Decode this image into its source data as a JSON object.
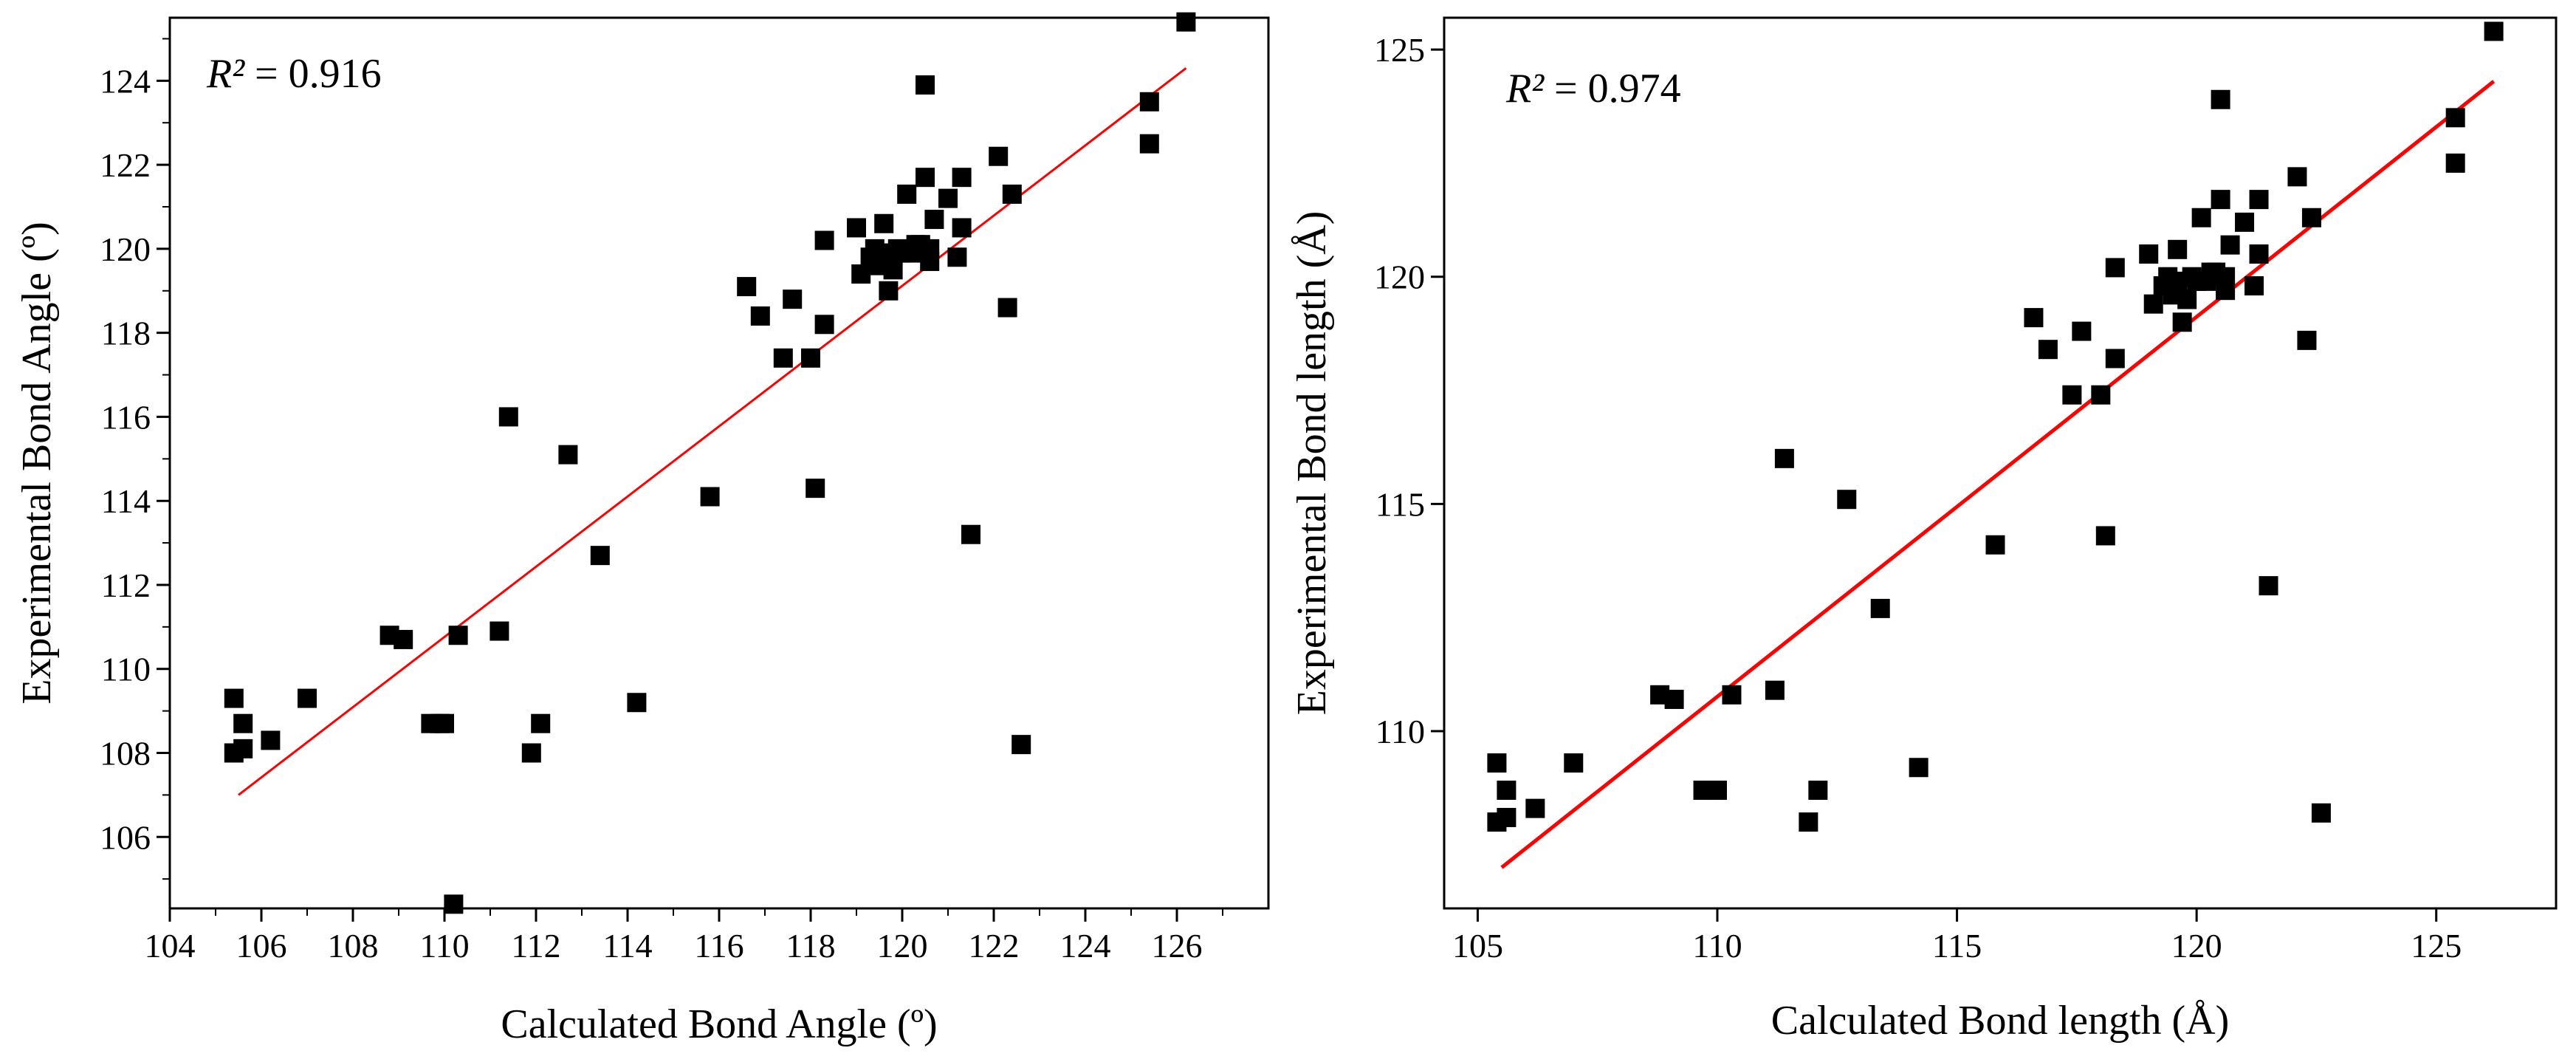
{
  "chart_data": [
    {
      "type": "scatter",
      "title": "",
      "xlabel": "Calculated Bond Angle (º)",
      "ylabel": "Experimental Bond Angle (º)",
      "xlim": [
        104,
        128
      ],
      "ylim": [
        104.3,
        125.5
      ],
      "xticks": [
        "104",
        "106",
        "108",
        "110",
        "112",
        "114",
        "116",
        "118",
        "120",
        "122",
        "124",
        "126"
      ],
      "yticks": [
        "106",
        "108",
        "110",
        "112",
        "114",
        "116",
        "118",
        "120",
        "122",
        "124"
      ],
      "r2_italic": "R²",
      "r2_value": " = 0.916",
      "fit_line": {
        "x": [
          105.5,
          126.2
        ],
        "y": [
          107.0,
          124.3
        ],
        "color": "#ff0000"
      },
      "marker_color": "#000000",
      "points": [
        [
          105.4,
          109.3
        ],
        [
          105.4,
          108.0
        ],
        [
          105.6,
          108.7
        ],
        [
          105.6,
          108.1
        ],
        [
          106.2,
          108.3
        ],
        [
          107.0,
          109.3
        ],
        [
          108.8,
          110.8
        ],
        [
          109.1,
          110.7
        ],
        [
          109.7,
          108.7
        ],
        [
          109.9,
          108.7
        ],
        [
          110.0,
          108.7
        ],
        [
          110.3,
          110.8
        ],
        [
          110.2,
          104.4
        ],
        [
          111.2,
          110.9
        ],
        [
          111.4,
          116.0
        ],
        [
          111.9,
          108.0
        ],
        [
          112.1,
          108.7
        ],
        [
          112.7,
          115.1
        ],
        [
          113.4,
          112.7
        ],
        [
          114.2,
          109.2
        ],
        [
          115.8,
          114.1
        ],
        [
          116.6,
          119.1
        ],
        [
          116.9,
          118.4
        ],
        [
          117.4,
          117.4
        ],
        [
          117.6,
          118.8
        ],
        [
          118.0,
          117.4
        ],
        [
          118.1,
          114.3
        ],
        [
          118.3,
          120.2
        ],
        [
          118.3,
          118.2
        ],
        [
          119.0,
          120.5
        ],
        [
          119.1,
          119.4
        ],
        [
          119.3,
          119.8
        ],
        [
          119.4,
          120.0
        ],
        [
          119.5,
          119.6
        ],
        [
          119.6,
          119.9
        ],
        [
          119.6,
          120.6
        ],
        [
          119.7,
          119.0
        ],
        [
          119.8,
          119.5
        ],
        [
          119.9,
          120.0
        ],
        [
          120.0,
          119.9
        ],
        [
          120.1,
          121.3
        ],
        [
          120.2,
          119.9
        ],
        [
          120.3,
          120.1
        ],
        [
          120.4,
          120.1
        ],
        [
          120.5,
          121.7
        ],
        [
          120.5,
          123.9
        ],
        [
          120.6,
          119.7
        ],
        [
          120.6,
          120.0
        ],
        [
          120.7,
          120.7
        ],
        [
          121.0,
          121.2
        ],
        [
          121.2,
          119.8
        ],
        [
          121.3,
          120.5
        ],
        [
          121.3,
          121.7
        ],
        [
          121.5,
          113.2
        ],
        [
          122.1,
          122.2
        ],
        [
          122.3,
          118.6
        ],
        [
          122.4,
          121.3
        ],
        [
          122.6,
          108.2
        ],
        [
          125.4,
          123.5
        ],
        [
          125.4,
          122.5
        ],
        [
          126.2,
          125.4
        ]
      ]
    },
    {
      "type": "scatter",
      "title": "",
      "xlabel": "Calculated Bond length (Å)",
      "ylabel": "Experimental Bond length (Å)",
      "xlim": [
        104.3,
        127.5
      ],
      "ylim": [
        106.1,
        125.7
      ],
      "xticks": [
        "105",
        "110",
        "115",
        "120",
        "125"
      ],
      "yticks": [
        "110",
        "115",
        "120",
        "125"
      ],
      "r2_italic": "R²",
      "r2_value": " = 0.974",
      "fit_line": {
        "x": [
          105.5,
          126.2
        ],
        "y": [
          107.0,
          124.3
        ],
        "color": "#ff0000"
      },
      "marker_color": "#000000",
      "points": [
        [
          105.4,
          109.3
        ],
        [
          105.4,
          108.0
        ],
        [
          105.6,
          108.7
        ],
        [
          105.6,
          108.1
        ],
        [
          106.2,
          108.3
        ],
        [
          107.0,
          109.3
        ],
        [
          108.8,
          110.8
        ],
        [
          109.1,
          110.7
        ],
        [
          109.7,
          108.7
        ],
        [
          109.9,
          108.7
        ],
        [
          110.0,
          108.7
        ],
        [
          110.3,
          110.8
        ],
        [
          111.2,
          110.9
        ],
        [
          111.4,
          116.0
        ],
        [
          111.9,
          108.0
        ],
        [
          112.1,
          108.7
        ],
        [
          112.7,
          115.1
        ],
        [
          113.4,
          112.7
        ],
        [
          114.2,
          109.2
        ],
        [
          115.8,
          114.1
        ],
        [
          116.6,
          119.1
        ],
        [
          116.9,
          118.4
        ],
        [
          117.4,
          117.4
        ],
        [
          117.6,
          118.8
        ],
        [
          118.0,
          117.4
        ],
        [
          118.1,
          114.3
        ],
        [
          118.3,
          120.2
        ],
        [
          118.3,
          118.2
        ],
        [
          119.0,
          120.5
        ],
        [
          119.1,
          119.4
        ],
        [
          119.3,
          119.8
        ],
        [
          119.4,
          120.0
        ],
        [
          119.5,
          119.6
        ],
        [
          119.6,
          119.9
        ],
        [
          119.6,
          120.6
        ],
        [
          119.7,
          119.0
        ],
        [
          119.8,
          119.5
        ],
        [
          119.9,
          120.0
        ],
        [
          120.0,
          119.9
        ],
        [
          120.1,
          121.3
        ],
        [
          120.2,
          119.9
        ],
        [
          120.3,
          120.1
        ],
        [
          120.4,
          120.1
        ],
        [
          120.5,
          121.7
        ],
        [
          120.5,
          123.9
        ],
        [
          120.6,
          119.7
        ],
        [
          120.6,
          120.0
        ],
        [
          120.7,
          120.7
        ],
        [
          121.0,
          121.2
        ],
        [
          121.2,
          119.8
        ],
        [
          121.3,
          120.5
        ],
        [
          121.3,
          121.7
        ],
        [
          121.5,
          113.2
        ],
        [
          122.1,
          122.2
        ],
        [
          122.3,
          118.6
        ],
        [
          122.4,
          121.3
        ],
        [
          122.6,
          108.2
        ],
        [
          125.4,
          123.5
        ],
        [
          125.4,
          122.5
        ],
        [
          126.2,
          125.4
        ]
      ]
    }
  ]
}
